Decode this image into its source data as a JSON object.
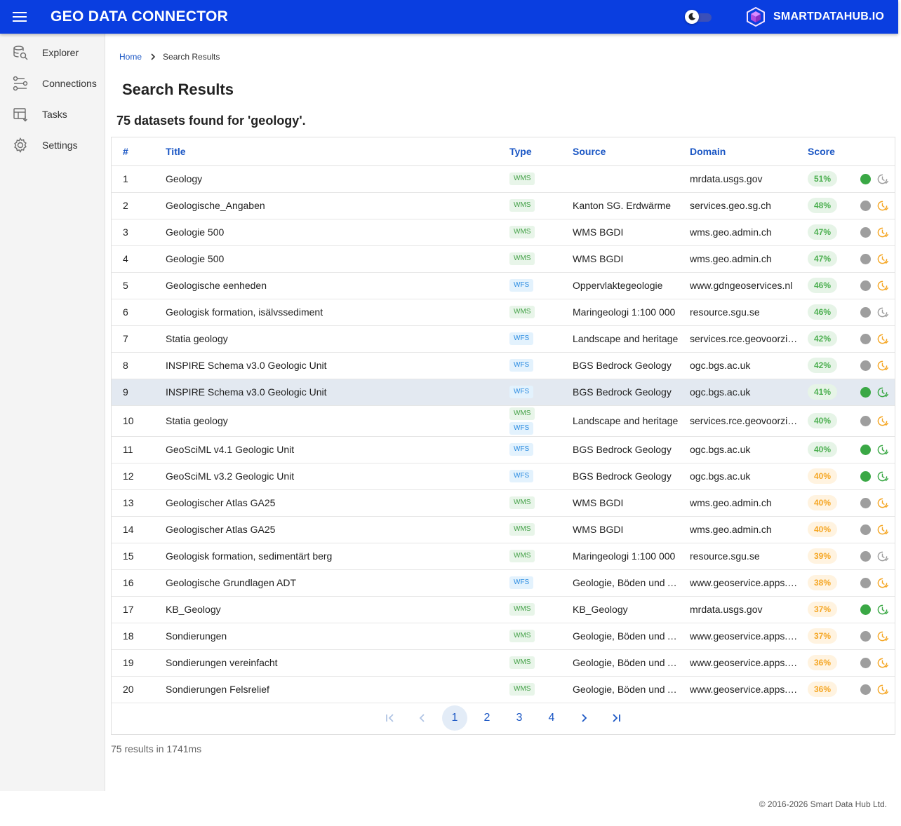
{
  "header": {
    "title": "GEO DATA CONNECTOR",
    "brand": "SMARTDATAHUB.IO",
    "brand_color": "#0a3ee0"
  },
  "sidebar": {
    "items": [
      {
        "label": "Explorer",
        "icon": "database-search-icon"
      },
      {
        "label": "Connections",
        "icon": "connections-icon"
      },
      {
        "label": "Tasks",
        "icon": "tasks-icon"
      },
      {
        "label": "Settings",
        "icon": "gear-icon"
      }
    ]
  },
  "breadcrumb": {
    "home": "Home",
    "current": "Search Results"
  },
  "page": {
    "title": "Search Results",
    "summary": "75 datasets found for 'geology'."
  },
  "table": {
    "headers": {
      "num": "#",
      "title": "Title",
      "type": "Type",
      "source": "Source",
      "domain": "Domain",
      "score": "Score"
    },
    "rows": [
      {
        "num": "1",
        "title": "Geology",
        "types": [
          "WMS"
        ],
        "source": "",
        "domain": "mrdata.usgs.gov",
        "score": "51%",
        "level": "high",
        "status": "green",
        "clock": "gray"
      },
      {
        "num": "2",
        "title": "Geologische_Angaben",
        "types": [
          "WMS"
        ],
        "source": "Kanton SG. Erdwärme",
        "domain": "services.geo.sg.ch",
        "score": "48%",
        "level": "high",
        "status": "gray",
        "clock": "orange"
      },
      {
        "num": "3",
        "title": "Geologie 500",
        "types": [
          "WMS"
        ],
        "source": "WMS BGDI",
        "domain": "wms.geo.admin.ch",
        "score": "47%",
        "level": "high",
        "status": "gray",
        "clock": "orange"
      },
      {
        "num": "4",
        "title": "Geologie 500",
        "types": [
          "WMS"
        ],
        "source": "WMS BGDI",
        "domain": "wms.geo.admin.ch",
        "score": "47%",
        "level": "high",
        "status": "gray",
        "clock": "orange"
      },
      {
        "num": "5",
        "title": "Geologische eenheden",
        "types": [
          "WFS"
        ],
        "source": "Oppervlaktegeologie",
        "domain": "www.gdngeoservices.nl",
        "score": "46%",
        "level": "high",
        "status": "gray",
        "clock": "orange"
      },
      {
        "num": "6",
        "title": "Geologisk formation, isälvssediment",
        "types": [
          "WMS"
        ],
        "source": "Maringeologi 1:100 000",
        "domain": "resource.sgu.se",
        "score": "46%",
        "level": "high",
        "status": "gray",
        "clock": "gray"
      },
      {
        "num": "7",
        "title": "Statia geology",
        "types": [
          "WFS"
        ],
        "source": "Landscape and heritage",
        "domain": "services.rce.geovoorziening.nl",
        "score": "42%",
        "level": "high",
        "status": "gray",
        "clock": "orange"
      },
      {
        "num": "8",
        "title": "INSPIRE Schema v3.0 Geologic Unit",
        "types": [
          "WFS"
        ],
        "source": "BGS Bedrock Geology",
        "domain": "ogc.bgs.ac.uk",
        "score": "42%",
        "level": "high",
        "status": "gray",
        "clock": "orange"
      },
      {
        "num": "9",
        "title": "INSPIRE Schema v3.0 Geologic Unit",
        "types": [
          "WFS"
        ],
        "source": "BGS Bedrock Geology",
        "domain": "ogc.bgs.ac.uk",
        "score": "41%",
        "level": "high",
        "status": "green",
        "clock": "green",
        "selected": true
      },
      {
        "num": "10",
        "title": "Statia geology",
        "types": [
          "WMS",
          "WFS"
        ],
        "source": "Landscape and heritage",
        "domain": "services.rce.geovoorziening.nl",
        "score": "40%",
        "level": "high",
        "status": "gray",
        "clock": "orange"
      },
      {
        "num": "11",
        "title": "GeoSciML v4.1 Geologic Unit",
        "types": [
          "WFS"
        ],
        "source": "BGS Bedrock Geology",
        "domain": "ogc.bgs.ac.uk",
        "score": "40%",
        "level": "high",
        "status": "green",
        "clock": "green"
      },
      {
        "num": "12",
        "title": "GeoSciML v3.2 Geologic Unit",
        "types": [
          "WFS"
        ],
        "source": "BGS Bedrock Geology",
        "domain": "ogc.bgs.ac.uk",
        "score": "40%",
        "level": "mid",
        "status": "green",
        "clock": "green"
      },
      {
        "num": "13",
        "title": "Geologischer Atlas GA25",
        "types": [
          "WMS"
        ],
        "source": "WMS BGDI",
        "domain": "wms.geo.admin.ch",
        "score": "40%",
        "level": "mid",
        "status": "gray",
        "clock": "orange"
      },
      {
        "num": "14",
        "title": "Geologischer Atlas GA25",
        "types": [
          "WMS"
        ],
        "source": "WMS BGDI",
        "domain": "wms.geo.admin.ch",
        "score": "40%",
        "level": "mid",
        "status": "gray",
        "clock": "orange"
      },
      {
        "num": "15",
        "title": "Geologisk formation, sedimentärt berg",
        "types": [
          "WMS"
        ],
        "source": "Maringeologi 1:100 000",
        "domain": "resource.sgu.se",
        "score": "39%",
        "level": "mid",
        "status": "gray",
        "clock": "gray"
      },
      {
        "num": "16",
        "title": "Geologische Grundlagen ADT",
        "types": [
          "WFS"
        ],
        "source": "Geologie, Böden und Altlasten",
        "domain": "www.geoservice.apps.be.ch",
        "score": "38%",
        "level": "mid",
        "status": "gray",
        "clock": "orange"
      },
      {
        "num": "17",
        "title": "KB_Geology",
        "types": [
          "WMS"
        ],
        "source": "KB_Geology",
        "domain": "mrdata.usgs.gov",
        "score": "37%",
        "level": "mid",
        "status": "green",
        "clock": "green"
      },
      {
        "num": "18",
        "title": "Sondierungen",
        "types": [
          "WMS"
        ],
        "source": "Geologie, Böden und Altlasten",
        "domain": "www.geoservice.apps.be.ch",
        "score": "37%",
        "level": "mid",
        "status": "gray",
        "clock": "orange"
      },
      {
        "num": "19",
        "title": "Sondierungen vereinfacht",
        "types": [
          "WMS"
        ],
        "source": "Geologie, Böden und Altlasten",
        "domain": "www.geoservice.apps.be.ch",
        "score": "36%",
        "level": "mid",
        "status": "gray",
        "clock": "orange"
      },
      {
        "num": "20",
        "title": "Sondierungen Felsrelief",
        "types": [
          "WMS"
        ],
        "source": "Geologie, Böden und Altlasten",
        "domain": "www.geoservice.apps.be.ch",
        "score": "36%",
        "level": "mid",
        "status": "gray",
        "clock": "orange"
      }
    ]
  },
  "pagination": {
    "pages": [
      "1",
      "2",
      "3",
      "4"
    ],
    "current": "1"
  },
  "timing": "75 results in 1741ms",
  "footer": "© 2016-2026 Smart Data Hub Ltd.",
  "colors": {
    "green": "#3aa845",
    "gray": "#9e9e9e",
    "orange": "#f5a623",
    "link": "#1a56c4"
  }
}
